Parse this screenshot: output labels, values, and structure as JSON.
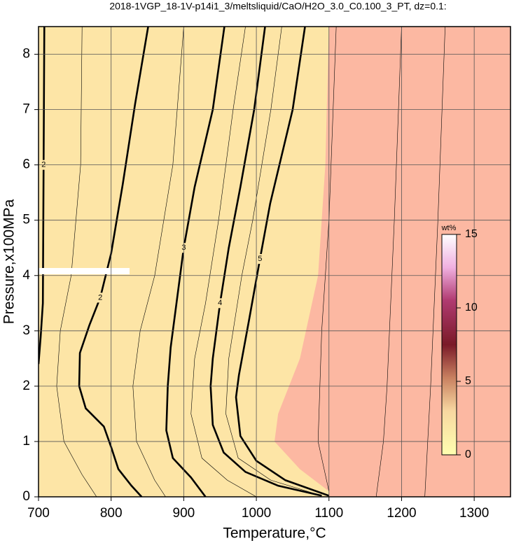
{
  "chart_data": {
    "type": "contour",
    "title": "2018-1VGP_18-1V-p14i1_3/meltsliquid/CaO/H2O_3.0_C0.100_3_PT, dz=0.1:",
    "xlabel": "Temperature,°C",
    "ylabel": "Pressure,x100MPa",
    "xlim": [
      700,
      1350
    ],
    "ylim": [
      0,
      8.5
    ],
    "xticks": [
      700,
      800,
      900,
      1000,
      1100,
      1200,
      1300
    ],
    "yticks": [
      0,
      1,
      2,
      3,
      4,
      5,
      6,
      7,
      8
    ],
    "grid": true,
    "background_color": "#fde5a6",
    "regions": [
      {
        "color": "#fcb8a2",
        "x": [
          1100,
          1095,
          1085,
          1060,
          1030,
          1025,
          1060,
          1100,
          1100,
          1350,
          1350
        ],
        "y": [
          8.5,
          6,
          4,
          2.5,
          1.5,
          1,
          0.5,
          0.1,
          0,
          0,
          8.5
        ]
      }
    ],
    "contours": [
      {
        "level": 2,
        "x": [
          708,
          707,
          706,
          703,
          700
        ],
        "y": [
          8.5,
          6,
          3.5,
          2.9,
          2.4
        ]
      },
      {
        "level": 2,
        "x": [
          851,
          833,
          816,
          800,
          785,
          770,
          757,
          756,
          765,
          790,
          800,
          810,
          828,
          842
        ],
        "y": [
          8.5,
          7.1,
          5.65,
          4.4,
          3.6,
          3.1,
          2.6,
          2,
          1.6,
          1.27,
          0.9,
          0.5,
          0.2,
          0
        ]
      },
      {
        "level": 3,
        "x": [
          956,
          940,
          915,
          900,
          890,
          882,
          878,
          876,
          885,
          910,
          930
        ],
        "y": [
          8.5,
          7,
          5.6,
          4.5,
          3.5,
          2.7,
          2,
          1.2,
          0.7,
          0.35,
          0
        ]
      },
      {
        "level": 4,
        "x": [
          1012,
          997,
          978,
          962,
          950,
          940,
          937,
          940,
          955,
          985,
          1030,
          1090
        ],
        "y": [
          8.5,
          7,
          5.6,
          4.5,
          3.5,
          2.5,
          2,
          1.3,
          0.8,
          0.45,
          0.2,
          0.02
        ]
      },
      {
        "level": 5,
        "x": [
          1067,
          1050,
          1019,
          1005,
          990,
          976,
          972,
          978,
          1000,
          1040,
          1100
        ],
        "y": [
          8.5,
          7,
          5.3,
          4.3,
          3.2,
          2.2,
          1.8,
          1.1,
          0.65,
          0.3,
          0.02
        ]
      }
    ],
    "thin_contours": [
      {
        "x": [
          760,
          758,
          745,
          730,
          725,
          735,
          760,
          780
        ],
        "y": [
          8.5,
          6,
          4,
          3,
          2,
          1,
          0.4,
          0
        ]
      },
      {
        "x": [
          900,
          885,
          860,
          840,
          830,
          835,
          860,
          875
        ],
        "y": [
          8.5,
          6,
          4,
          3,
          2,
          1,
          0.3,
          0
        ]
      },
      {
        "x": [
          985,
          968,
          948,
          930,
          915,
          910,
          925,
          960,
          1000
        ],
        "y": [
          8.5,
          7,
          5,
          3.5,
          2.5,
          1.5,
          0.7,
          0.3,
          0
        ]
      },
      {
        "x": [
          1035,
          1020,
          995,
          980,
          962,
          958,
          975,
          1020,
          1090
        ],
        "y": [
          8.5,
          7,
          5,
          4,
          2.5,
          1.5,
          0.7,
          0.3,
          0.02
        ]
      },
      {
        "x": [
          1110,
          1100,
          1090,
          1085,
          1100
        ],
        "y": [
          8.5,
          5,
          3,
          1,
          0.1
        ]
      },
      {
        "x": [
          1200,
          1190,
          1180,
          1175,
          1165
        ],
        "y": [
          8.5,
          5,
          2,
          1,
          0
        ]
      },
      {
        "x": [
          1260,
          1250,
          1240,
          1232
        ],
        "y": [
          8.5,
          5,
          2,
          0
        ]
      }
    ],
    "colorbar": {
      "label": "wt%",
      "lim": [
        0,
        15
      ],
      "ticks": [
        0,
        5,
        10,
        15
      ]
    }
  }
}
